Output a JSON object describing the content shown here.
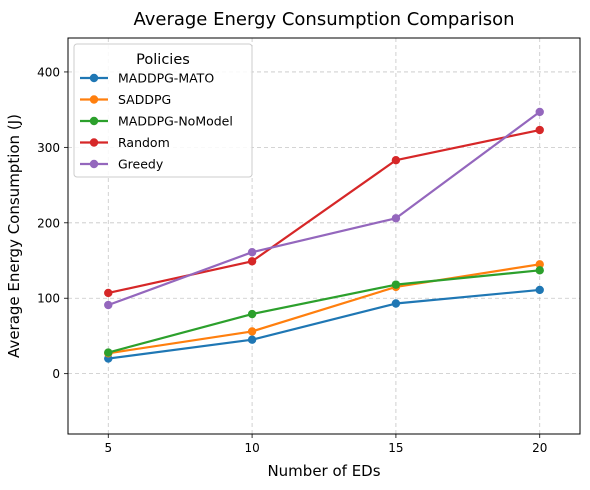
{
  "chart_data": {
    "type": "line",
    "title": "Average Energy Consumption Comparison",
    "xlabel": "Number of EDs",
    "ylabel": "Average Energy Consumption (J)",
    "x": [
      5,
      10,
      15,
      20
    ],
    "xlim": [
      3.6,
      21.4
    ],
    "ylim": [
      -80,
      445
    ],
    "xticks": [
      "5",
      "10",
      "15",
      "20"
    ],
    "yticks": [
      0,
      100,
      200,
      300,
      400
    ],
    "grid": true,
    "legend": {
      "title": "Policies",
      "placement": "upper left"
    },
    "series": [
      {
        "name": "MADDPG-MATO",
        "color": "#1f77b4",
        "values": [
          20,
          45,
          93,
          111
        ]
      },
      {
        "name": "SADDPG",
        "color": "#ff7f0e",
        "values": [
          27,
          56,
          115,
          145
        ]
      },
      {
        "name": "MADDPG-NoModel",
        "color": "#2ca02c",
        "values": [
          28,
          79,
          118,
          137
        ]
      },
      {
        "name": "Random",
        "color": "#d62728",
        "values": [
          107,
          149,
          283,
          323
        ]
      },
      {
        "name": "Greedy",
        "color": "#9467bd",
        "values": [
          91,
          161,
          206,
          347
        ]
      }
    ]
  }
}
